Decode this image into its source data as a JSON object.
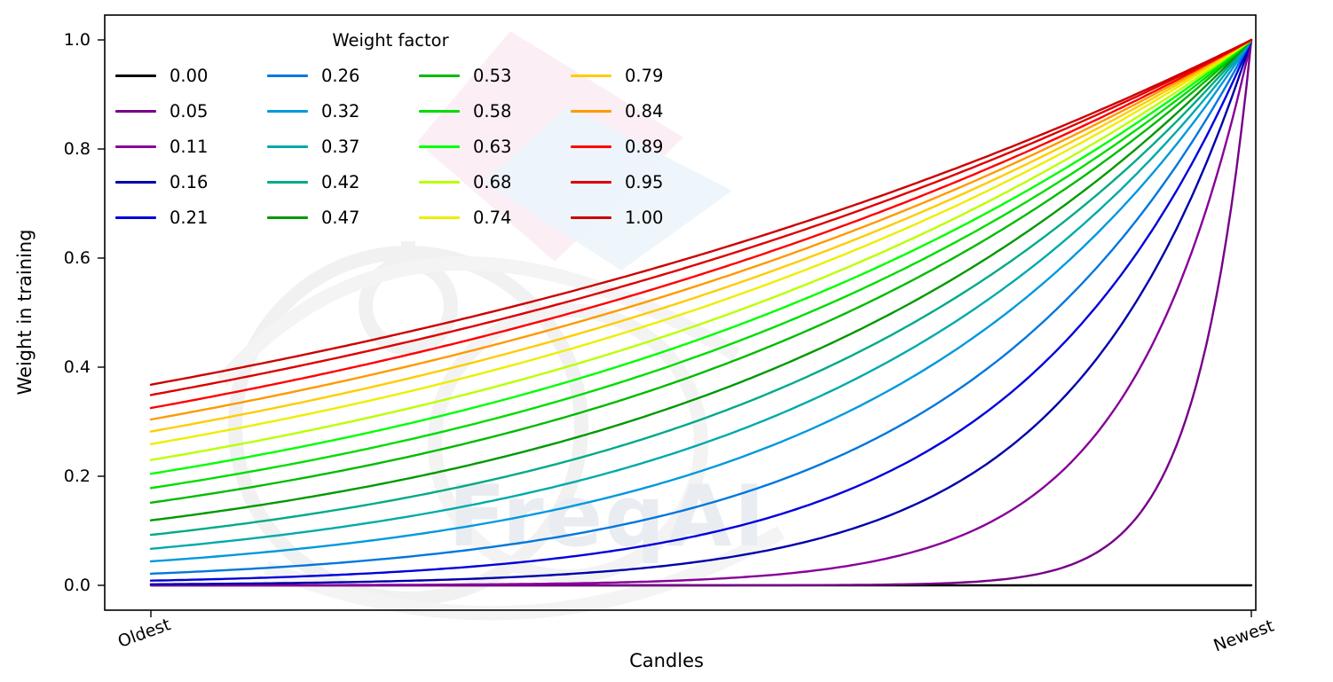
{
  "figure": {
    "background_color": "#ffffff",
    "frame_color": "#000000"
  },
  "watermark": {
    "text": "FreqAI"
  },
  "chart_data": {
    "type": "line",
    "title": "",
    "xlabel": "Candles",
    "ylabel": "Weight in training",
    "x_ticks": [
      "Oldest",
      "Newest"
    ],
    "y_ticks": [
      0.0,
      0.2,
      0.4,
      0.6,
      0.8,
      1.0
    ],
    "y_tick_labels": [
      "0.0",
      "0.2",
      "0.4",
      "0.6",
      "0.8",
      "1.0"
    ],
    "ylim": [
      0.0,
      1.0
    ],
    "grid": false,
    "legend_title": "Weight factor",
    "legend_position": "upper-left",
    "legend_columns": 4,
    "formula": "weight(x) = exp(-(1 - x) / factor), x in [0,1] from Oldest to Newest; all curves reach 1.0 at Newest; factor = 0 gives weight 0 (flat black line)",
    "series": [
      {
        "label": "0.00",
        "factor": 0.0,
        "color": "#000000"
      },
      {
        "label": "0.05",
        "factor": 0.05,
        "color": "#770088"
      },
      {
        "label": "0.11",
        "factor": 0.11,
        "color": "#880099"
      },
      {
        "label": "0.16",
        "factor": 0.16,
        "color": "#0000aa"
      },
      {
        "label": "0.21",
        "factor": 0.21,
        "color": "#0000dd"
      },
      {
        "label": "0.26",
        "factor": 0.26,
        "color": "#0077dd"
      },
      {
        "label": "0.32",
        "factor": 0.32,
        "color": "#0099dd"
      },
      {
        "label": "0.37",
        "factor": 0.37,
        "color": "#00aaaa"
      },
      {
        "label": "0.42",
        "factor": 0.42,
        "color": "#00aa88"
      },
      {
        "label": "0.47",
        "factor": 0.47,
        "color": "#009900"
      },
      {
        "label": "0.53",
        "factor": 0.53,
        "color": "#00bb00"
      },
      {
        "label": "0.58",
        "factor": 0.58,
        "color": "#00dd00"
      },
      {
        "label": "0.63",
        "factor": 0.63,
        "color": "#00ff00"
      },
      {
        "label": "0.68",
        "factor": 0.68,
        "color": "#bbff00"
      },
      {
        "label": "0.74",
        "factor": 0.74,
        "color": "#eeee00"
      },
      {
        "label": "0.79",
        "factor": 0.79,
        "color": "#ffcc00"
      },
      {
        "label": "0.84",
        "factor": 0.84,
        "color": "#ff9900"
      },
      {
        "label": "0.89",
        "factor": 0.89,
        "color": "#ff0000"
      },
      {
        "label": "0.95",
        "factor": 0.95,
        "color": "#dd0000"
      },
      {
        "label": "1.00",
        "factor": 1.0,
        "color": "#cc0000"
      }
    ]
  }
}
